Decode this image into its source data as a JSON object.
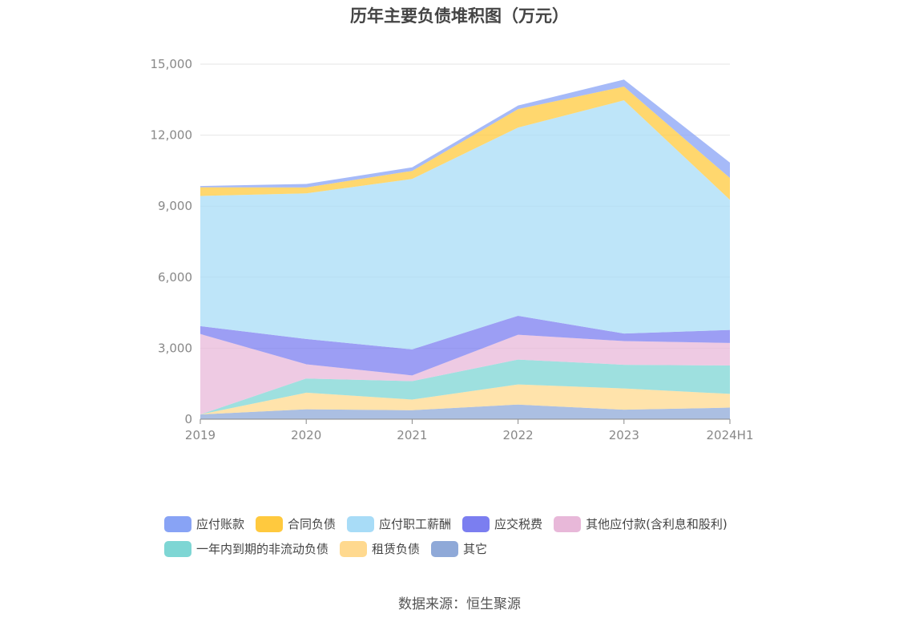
{
  "chart_data": {
    "type": "area",
    "stacked": true,
    "title": "历年主要负债堆积图（万元）",
    "categories": [
      "2019",
      "2020",
      "2021",
      "2022",
      "2023",
      "2024H1"
    ],
    "ylim": [
      0,
      15000
    ],
    "yticks": [
      "0",
      "3,000",
      "6,000",
      "9,000",
      "12,000",
      "15,000"
    ],
    "ytick_values": [
      0,
      3000,
      6000,
      9000,
      12000,
      15000
    ],
    "grid": true,
    "legend_position": "bottom",
    "series": [
      {
        "name": "其它",
        "color": "#8fa9d8",
        "values": [
          200,
          420,
          380,
          620,
          400,
          490
        ]
      },
      {
        "name": "租赁负债",
        "color": "#ffd98f",
        "values": [
          0,
          700,
          450,
          850,
          900,
          580
        ]
      },
      {
        "name": "一年内到期的非流动负债",
        "color": "#7ed6d4",
        "values": [
          0,
          600,
          780,
          1050,
          1000,
          1200
        ]
      },
      {
        "name": "其他应付款(含利息和股利)",
        "color": "#e8b8d9",
        "values": [
          3400,
          600,
          240,
          1050,
          1000,
          950
        ]
      },
      {
        "name": "应交税费",
        "color": "#7b7ef0",
        "values": [
          330,
          1070,
          1100,
          800,
          320,
          550
        ]
      },
      {
        "name": "应付职工薪酬",
        "color": "#a8dcf7",
        "values": [
          5500,
          6150,
          7200,
          7950,
          9850,
          5500
        ]
      },
      {
        "name": "合同负债",
        "color": "#ffc93e",
        "values": [
          370,
          250,
          340,
          780,
          580,
          920
        ]
      },
      {
        "name": "应付账款",
        "color": "#88a3f5",
        "values": [
          50,
          150,
          150,
          150,
          300,
          650
        ]
      }
    ]
  },
  "legend": [
    {
      "name": "应付账款",
      "color": "#88a3f5"
    },
    {
      "name": "合同负债",
      "color": "#ffc93e"
    },
    {
      "name": "应付职工薪酬",
      "color": "#a8dcf7"
    },
    {
      "name": "应交税费",
      "color": "#7b7ef0"
    },
    {
      "name": "其他应付款(含利息和股利)",
      "color": "#e8b8d9"
    },
    {
      "name": "一年内到期的非流动负债",
      "color": "#7ed6d4"
    },
    {
      "name": "租赁负债",
      "color": "#ffd98f"
    },
    {
      "name": "其它",
      "color": "#8fa9d8"
    }
  ],
  "source": "数据来源：恒生聚源"
}
